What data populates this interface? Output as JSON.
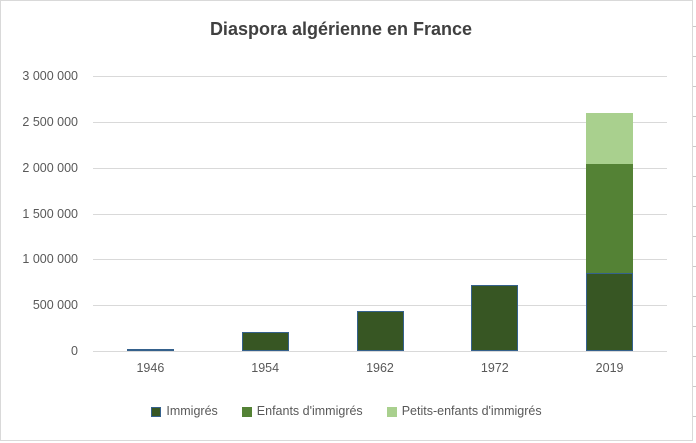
{
  "title": "Diaspora algérienne en France",
  "colors": {
    "title_text": "#404040",
    "axis_text": "#595959",
    "gridline": "#D9D9D9",
    "frame_border": "#D9D9D9",
    "immigres_fill": "#375623",
    "immigres_border": "#35618C",
    "enfants_fill": "#548235",
    "petits_enfants_fill": "#A9D08E"
  },
  "chart_data": {
    "type": "bar",
    "stacked": true,
    "title": "Diaspora algérienne en France",
    "xlabel": "",
    "ylabel": "",
    "categories": [
      "1946",
      "1954",
      "1962",
      "1972",
      "2019"
    ],
    "series": [
      {
        "name": "Immigrés",
        "color": "#375623",
        "border": "#35618C",
        "values": [
          25000,
          210000,
          435000,
          720000,
          850000
        ]
      },
      {
        "name": "Enfants d'immigrés",
        "color": "#548235",
        "border": null,
        "values": [
          0,
          0,
          0,
          0,
          1190000
        ]
      },
      {
        "name": "Petits-enfants d'immigrés",
        "color": "#A9D08E",
        "border": null,
        "values": [
          0,
          0,
          0,
          0,
          560000
        ]
      }
    ],
    "ylim": [
      0,
      3000000
    ],
    "yticks": [
      {
        "value": 0,
        "label": "0"
      },
      {
        "value": 500000,
        "label": "500 000"
      },
      {
        "value": 1000000,
        "label": "1 000 000"
      },
      {
        "value": 1500000,
        "label": "1 500 000"
      },
      {
        "value": 2000000,
        "label": "2 000 000"
      },
      {
        "value": 2500000,
        "label": "2 500 000"
      },
      {
        "value": 3000000,
        "label": "3 000 000"
      }
    ],
    "grid": true,
    "legend_position": "bottom"
  }
}
